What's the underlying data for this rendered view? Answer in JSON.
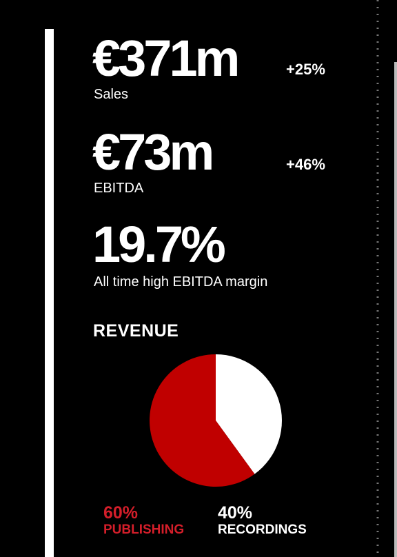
{
  "stats": [
    {
      "value": "€371m",
      "change": "+25%",
      "label": "Sales"
    },
    {
      "value": "€73m",
      "change": "+46%",
      "label": "EBITDA"
    },
    {
      "value": "19.7%",
      "label": "All time high EBITDA margin"
    }
  ],
  "chart_data": {
    "type": "pie",
    "title": "REVENUE",
    "categories": [
      "PUBLISHING",
      "RECORDINGS"
    ],
    "values": [
      60,
      40
    ],
    "value_labels": [
      "60%",
      "40%"
    ],
    "colors": [
      "#c00000",
      "#ffffff"
    ],
    "label_colors": [
      "#d41e2a",
      "#ffffff"
    ]
  }
}
